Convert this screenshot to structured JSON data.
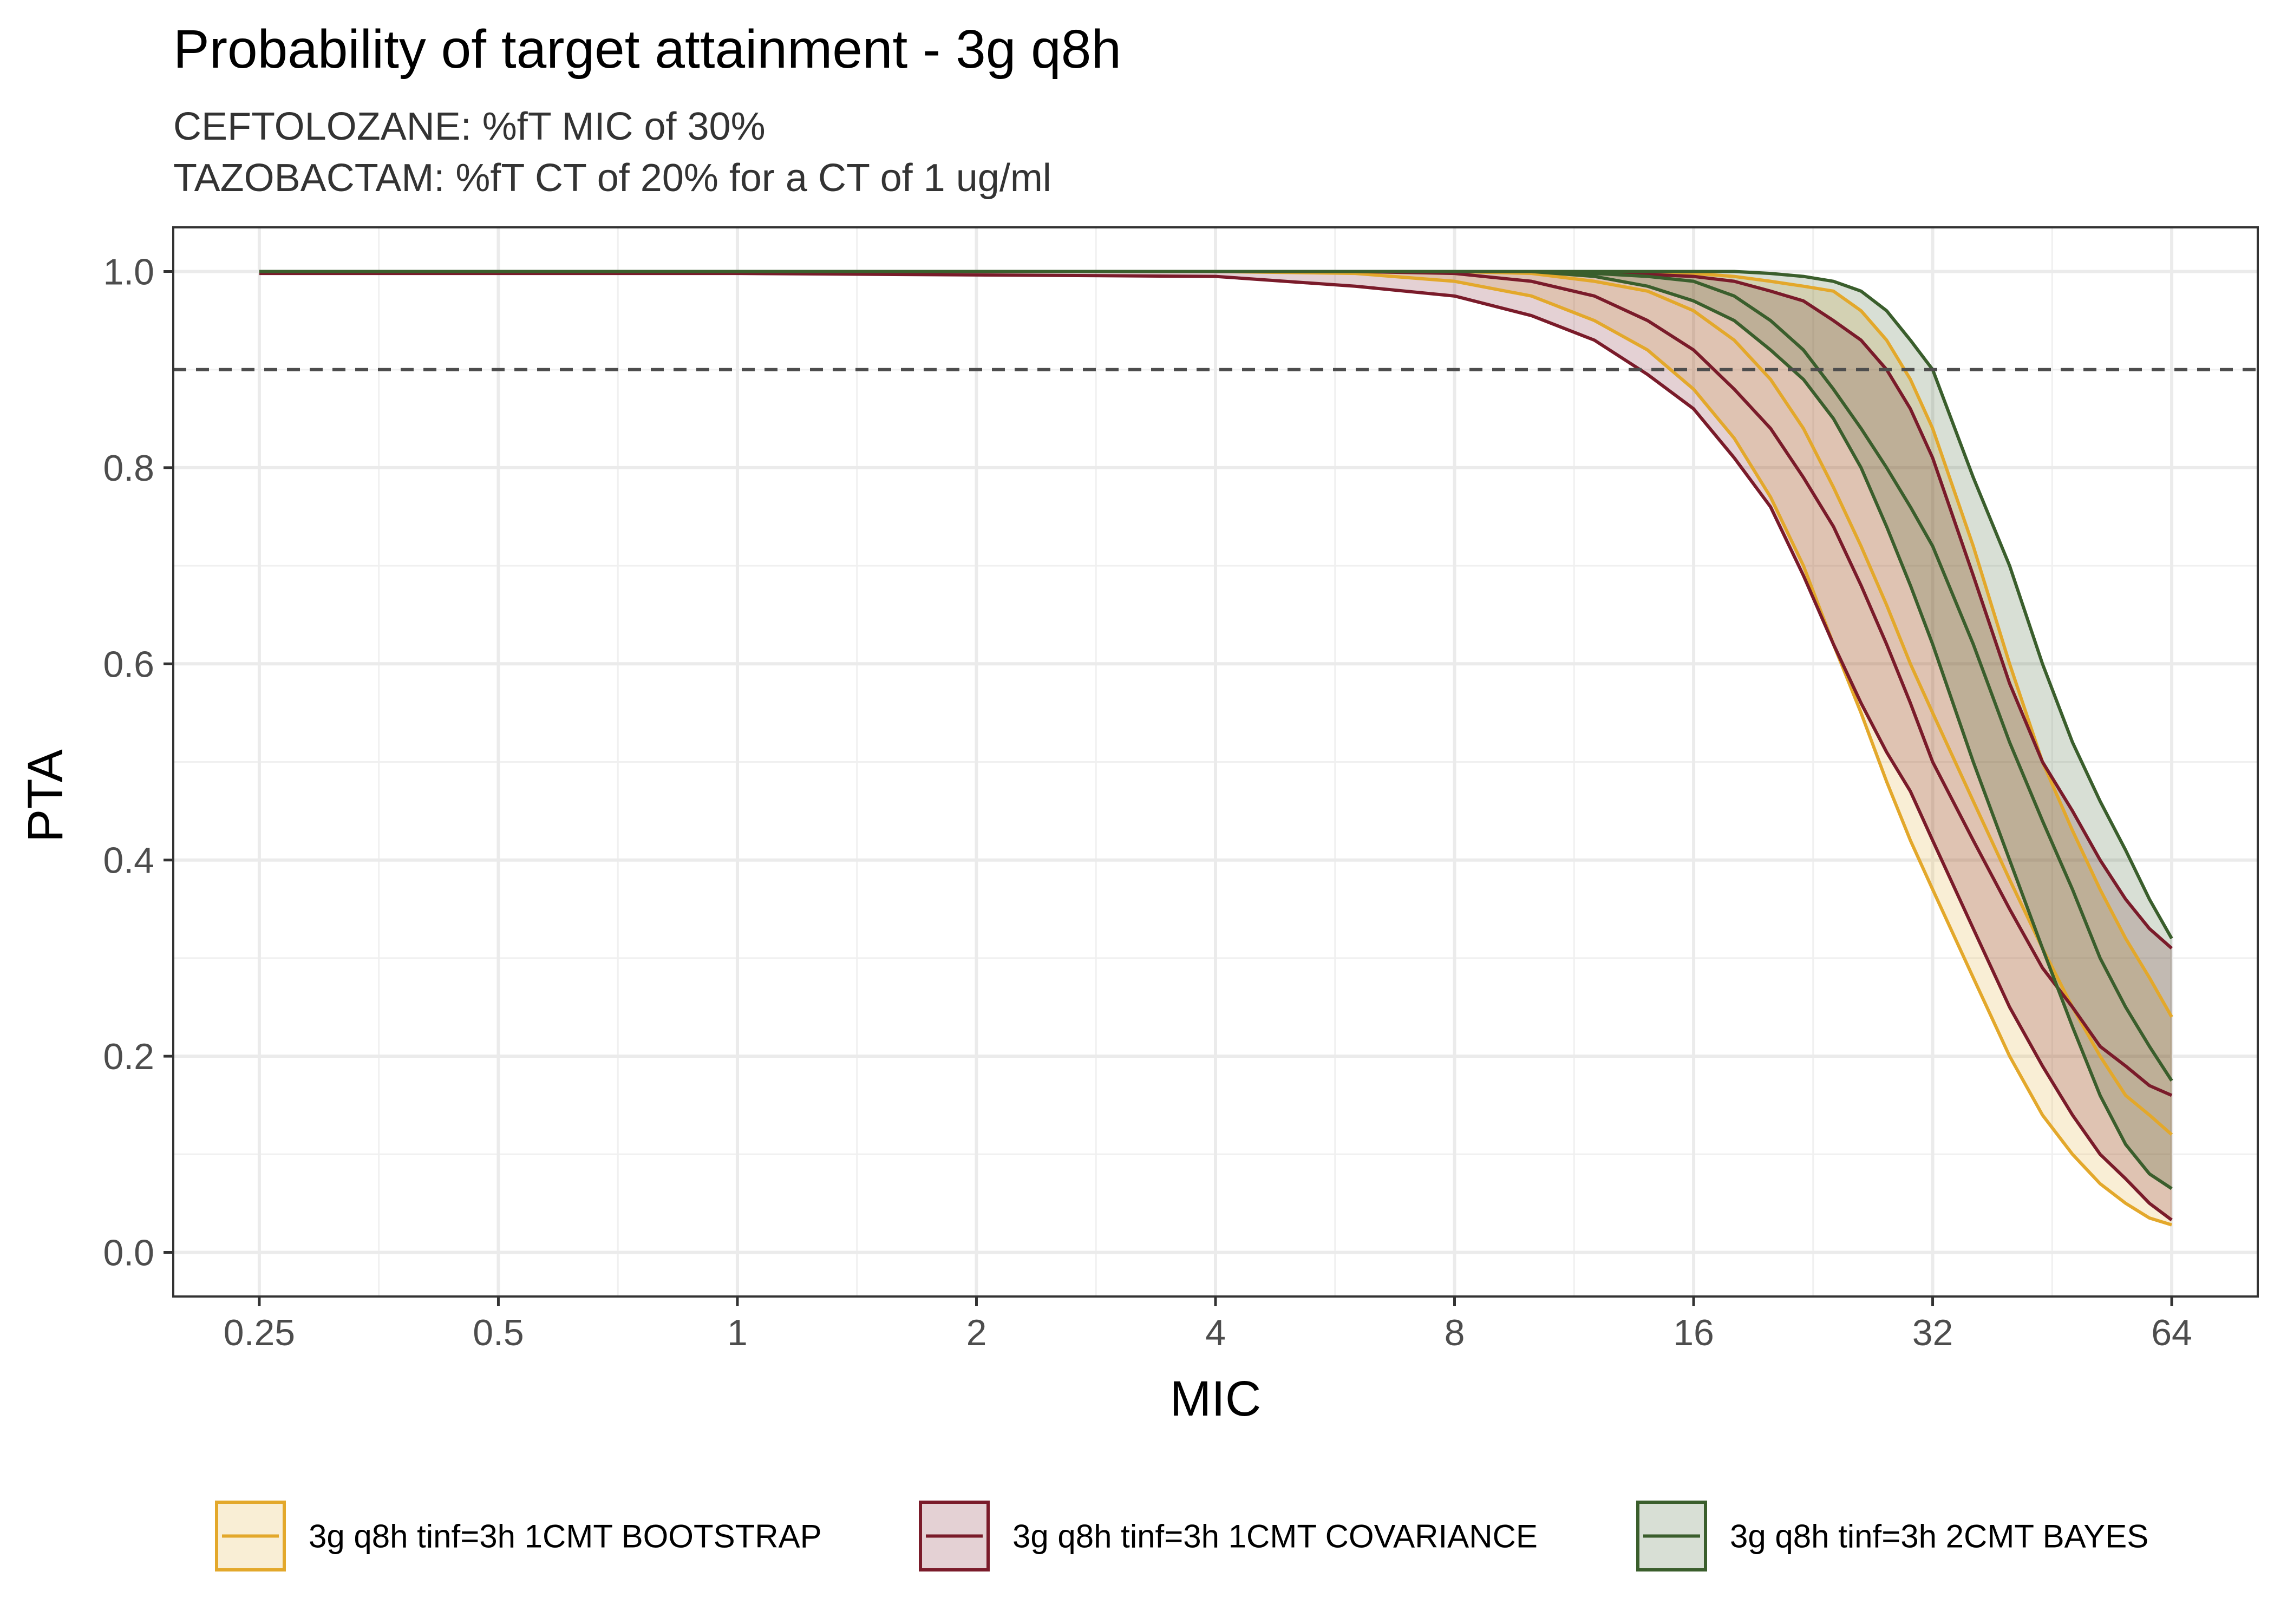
{
  "chart_data": {
    "type": "line",
    "title": "Probability of target attainment - 3g q8h",
    "subtitle_lines": [
      "CEFTOLOZANE: %fT MIC of 30%",
      "TAZOBACTAM: %fT CT of 20% for a CT of 1 ug/ml"
    ],
    "xlabel": "MIC",
    "ylabel": "PTA",
    "x_scale": "log2",
    "xlim": [
      0.25,
      64
    ],
    "ylim": [
      0,
      1
    ],
    "x_ticks": [
      {
        "value": 0.25,
        "label": "0.25"
      },
      {
        "value": 0.5,
        "label": "0.5"
      },
      {
        "value": 1,
        "label": "1"
      },
      {
        "value": 2,
        "label": "2"
      },
      {
        "value": 4,
        "label": "4"
      },
      {
        "value": 8,
        "label": "8"
      },
      {
        "value": 16,
        "label": "16"
      },
      {
        "value": 32,
        "label": "32"
      },
      {
        "value": 64,
        "label": "64"
      }
    ],
    "y_ticks": [
      {
        "value": 0.0,
        "label": "0.0"
      },
      {
        "value": 0.2,
        "label": "0.2"
      },
      {
        "value": 0.4,
        "label": "0.4"
      },
      {
        "value": 0.6,
        "label": "0.6"
      },
      {
        "value": 0.8,
        "label": "0.8"
      },
      {
        "value": 1.0,
        "label": "1.0"
      }
    ],
    "reference_line": {
      "y": 0.9,
      "style": "dashed",
      "color": "#4d4d4d"
    },
    "grid": true,
    "legend_position": "bottom",
    "series": [
      {
        "name": "3g q8h tinf=3h 1CMT BOOTSTRAP",
        "color": "#E3A82B",
        "fill": "#E3A82B",
        "x": [
          0.25,
          1,
          4,
          6,
          8,
          10,
          12,
          14,
          16,
          18,
          20,
          22,
          24,
          26,
          28,
          30,
          32,
          36,
          40,
          44,
          48,
          52,
          56,
          60,
          64
        ],
        "upper": [
          1.0,
          1.0,
          1.0,
          1.0,
          1.0,
          1.0,
          1.0,
          1.0,
          0.998,
          0.995,
          0.99,
          0.985,
          0.98,
          0.96,
          0.93,
          0.89,
          0.84,
          0.72,
          0.6,
          0.5,
          0.43,
          0.37,
          0.32,
          0.28,
          0.24
        ],
        "median": [
          1.0,
          1.0,
          1.0,
          1.0,
          1.0,
          0.998,
          0.99,
          0.98,
          0.96,
          0.93,
          0.89,
          0.84,
          0.78,
          0.72,
          0.66,
          0.6,
          0.55,
          0.46,
          0.38,
          0.31,
          0.25,
          0.2,
          0.16,
          0.14,
          0.12
        ],
        "lower": [
          1.0,
          1.0,
          1.0,
          0.998,
          0.99,
          0.975,
          0.95,
          0.92,
          0.88,
          0.83,
          0.77,
          0.7,
          0.62,
          0.55,
          0.48,
          0.42,
          0.37,
          0.28,
          0.2,
          0.14,
          0.1,
          0.07,
          0.05,
          0.035,
          0.028
        ]
      },
      {
        "name": "3g q8h tinf=3h 1CMT COVARIANCE",
        "color": "#7A1B2A",
        "fill": "#7A1B2A",
        "x": [
          0.25,
          1,
          4,
          6,
          8,
          10,
          12,
          14,
          16,
          18,
          20,
          22,
          24,
          26,
          28,
          30,
          32,
          36,
          40,
          44,
          48,
          52,
          56,
          60,
          64
        ],
        "upper": [
          1.0,
          1.0,
          1.0,
          1.0,
          1.0,
          1.0,
          0.999,
          0.997,
          0.995,
          0.99,
          0.98,
          0.97,
          0.95,
          0.93,
          0.9,
          0.86,
          0.81,
          0.69,
          0.58,
          0.5,
          0.45,
          0.4,
          0.36,
          0.33,
          0.31
        ],
        "median": [
          1.0,
          1.0,
          1.0,
          1.0,
          0.998,
          0.99,
          0.975,
          0.95,
          0.92,
          0.88,
          0.84,
          0.79,
          0.74,
          0.68,
          0.62,
          0.56,
          0.5,
          0.42,
          0.35,
          0.29,
          0.25,
          0.21,
          0.19,
          0.17,
          0.16
        ],
        "lower": [
          0.998,
          0.998,
          0.995,
          0.985,
          0.975,
          0.955,
          0.93,
          0.895,
          0.86,
          0.81,
          0.76,
          0.69,
          0.62,
          0.56,
          0.51,
          0.47,
          0.42,
          0.33,
          0.25,
          0.19,
          0.14,
          0.1,
          0.075,
          0.05,
          0.033
        ]
      },
      {
        "name": "3g q8h tinf=3h 2CMT BAYES",
        "color": "#3A5E2C",
        "fill": "#3A5E2C",
        "x": [
          0.25,
          1,
          4,
          6,
          8,
          10,
          12,
          14,
          16,
          18,
          20,
          22,
          24,
          26,
          28,
          30,
          32,
          36,
          40,
          44,
          48,
          52,
          56,
          60,
          64
        ],
        "upper": [
          1.0,
          1.0,
          1.0,
          1.0,
          1.0,
          1.0,
          1.0,
          1.0,
          1.0,
          1.0,
          0.998,
          0.995,
          0.99,
          0.98,
          0.96,
          0.93,
          0.9,
          0.79,
          0.7,
          0.6,
          0.52,
          0.46,
          0.41,
          0.36,
          0.32
        ],
        "median": [
          1.0,
          1.0,
          1.0,
          1.0,
          1.0,
          1.0,
          0.998,
          0.995,
          0.99,
          0.975,
          0.95,
          0.92,
          0.88,
          0.84,
          0.8,
          0.76,
          0.72,
          0.62,
          0.52,
          0.44,
          0.37,
          0.3,
          0.25,
          0.21,
          0.175
        ],
        "lower": [
          1.0,
          1.0,
          1.0,
          1.0,
          1.0,
          1.0,
          0.995,
          0.985,
          0.97,
          0.95,
          0.92,
          0.89,
          0.85,
          0.8,
          0.74,
          0.68,
          0.62,
          0.5,
          0.4,
          0.31,
          0.23,
          0.16,
          0.11,
          0.08,
          0.065
        ]
      }
    ]
  }
}
